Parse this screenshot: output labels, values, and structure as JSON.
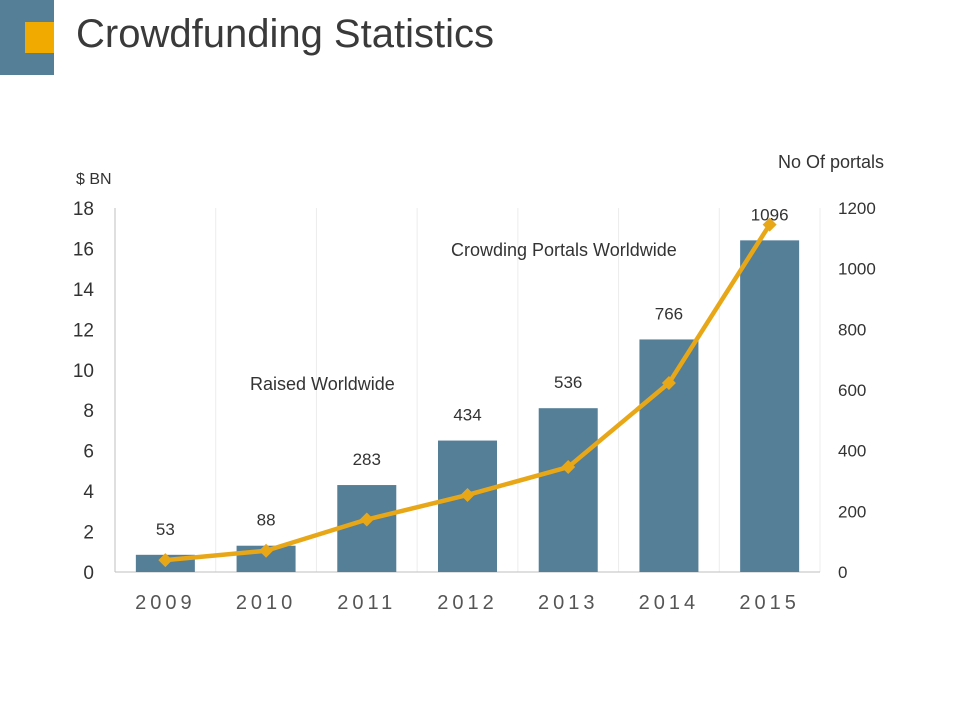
{
  "title": "Crowdfunding Statistics",
  "colors": {
    "bar": "#557e97",
    "line": "#e8a717",
    "accent": "#f0aa00",
    "corner": "#557e97",
    "grid": "#ececec",
    "text": "#404040"
  },
  "chart_data": {
    "type": "bar",
    "categories": [
      "2009",
      "2010",
      "2011",
      "2012",
      "2013",
      "2014",
      "2015"
    ],
    "series": [
      {
        "values": [
          0.85,
          1.3,
          4.3,
          6.5,
          8.1,
          11.5,
          16.4
        ],
        "axis": "left",
        "type": "bar"
      },
      {
        "values": [
          39,
          70,
          173,
          254,
          346,
          623,
          1145
        ],
        "axis": "right",
        "type": "line",
        "marker": "diamond"
      }
    ],
    "data_labels": [
      "53",
      "88",
      "283",
      "434",
      "536",
      "766",
      "1096"
    ],
    "annotations": [
      "Raised Worldwide",
      "Crowding Portals Worldwide"
    ],
    "y_left": {
      "label": "$ BN",
      "ticks": [
        0,
        2,
        4,
        6,
        8,
        10,
        12,
        14,
        16,
        18
      ],
      "range": [
        0,
        18
      ]
    },
    "y_right": {
      "label": "No Of portals",
      "ticks": [
        0,
        200,
        400,
        600,
        800,
        1000,
        1200
      ],
      "range": [
        0,
        1200
      ]
    },
    "grid": "vertical",
    "legend": "none"
  }
}
